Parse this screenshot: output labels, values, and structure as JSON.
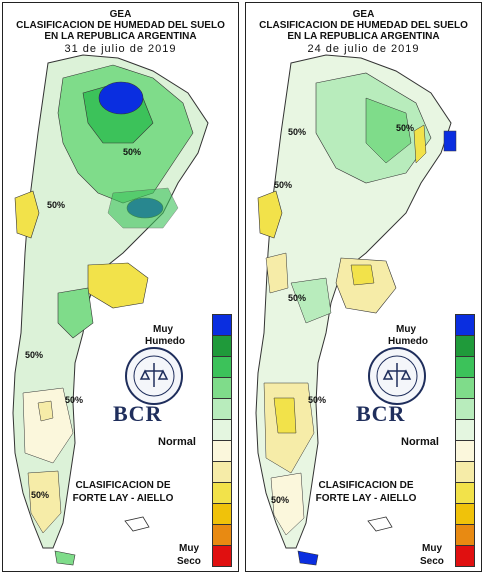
{
  "panels": [
    {
      "title_line1": "GEA",
      "title_line2": "CLASIFICACION DE HUMEDAD DEL SUELO",
      "title_line3": "EN LA REPUBLICA ARGENTINA",
      "date": "31 de julio de 2019",
      "map_labels": [
        "50%",
        "50%",
        "50%",
        "50%",
        "50%"
      ]
    },
    {
      "title_line1": "GEA",
      "title_line2": "CLASIFICACION DE HUMEDAD DEL SUELO",
      "title_line3": "EN LA REPUBLICA ARGENTINA",
      "date": "24 de julio de 2019",
      "map_labels": [
        "50%",
        "50%",
        "50%",
        "50%",
        "50%",
        "50%"
      ]
    }
  ],
  "legend": {
    "top_label_1": "Muy",
    "top_label_2": "Humedo",
    "mid_label": "Normal",
    "bottom_label_1": "Muy",
    "bottom_label_2": "Seco",
    "colors": [
      "#0a2ee0",
      "#1f9a3a",
      "#3cc25a",
      "#7fdc8a",
      "#b8ecbc",
      "#e4f6e0",
      "#fbf7dc",
      "#f6eca8",
      "#f2e24a",
      "#f0c20a",
      "#e88a12",
      "#e01010"
    ]
  },
  "classification": {
    "line1": "CLASIFICACION DE",
    "line2": "FORTE LAY - AIELLO"
  },
  "logo": {
    "text": "BCR",
    "seal_text": "BOLSA DE COMERCIO DE ROSARIO"
  }
}
